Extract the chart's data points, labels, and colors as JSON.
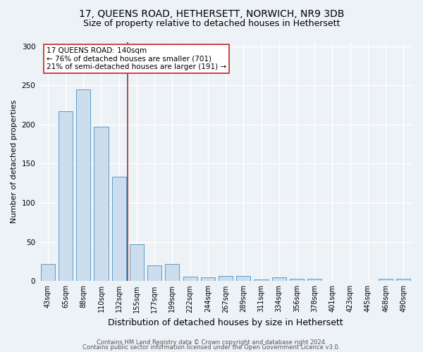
{
  "title1": "17, QUEENS ROAD, HETHERSETT, NORWICH, NR9 3DB",
  "title2": "Size of property relative to detached houses in Hethersett",
  "xlabel": "Distribution of detached houses by size in Hethersett",
  "ylabel": "Number of detached properties",
  "categories": [
    "43sqm",
    "65sqm",
    "88sqm",
    "110sqm",
    "132sqm",
    "155sqm",
    "177sqm",
    "199sqm",
    "222sqm",
    "244sqm",
    "267sqm",
    "289sqm",
    "311sqm",
    "334sqm",
    "356sqm",
    "378sqm",
    "401sqm",
    "423sqm",
    "445sqm",
    "468sqm",
    "490sqm"
  ],
  "values": [
    22,
    217,
    245,
    197,
    133,
    47,
    20,
    22,
    6,
    5,
    7,
    7,
    2,
    5,
    3,
    3,
    0,
    0,
    0,
    3,
    3
  ],
  "bar_color": "#ccdded",
  "bar_edge_color": "#5b9dc9",
  "vline_color": "#993333",
  "vline_x_idx": 4.5,
  "annotation_text": "17 QUEENS ROAD: 140sqm\n← 76% of detached houses are smaller (701)\n21% of semi-detached houses are larger (191) →",
  "annotation_box_color": "white",
  "annotation_box_edge_color": "#cc3333",
  "ylim": [
    0,
    305
  ],
  "yticks": [
    0,
    50,
    100,
    150,
    200,
    250,
    300
  ],
  "footer1": "Contains HM Land Registry data © Crown copyright and database right 2024.",
  "footer2": "Contains public sector information licensed under the Open Government Licence v3.0.",
  "background_color": "#edf2f7",
  "grid_color": "#ffffff",
  "title1_fontsize": 10,
  "title2_fontsize": 9,
  "tick_fontsize": 7,
  "ylabel_fontsize": 8,
  "xlabel_fontsize": 9,
  "footer_fontsize": 6,
  "bar_width": 0.8
}
